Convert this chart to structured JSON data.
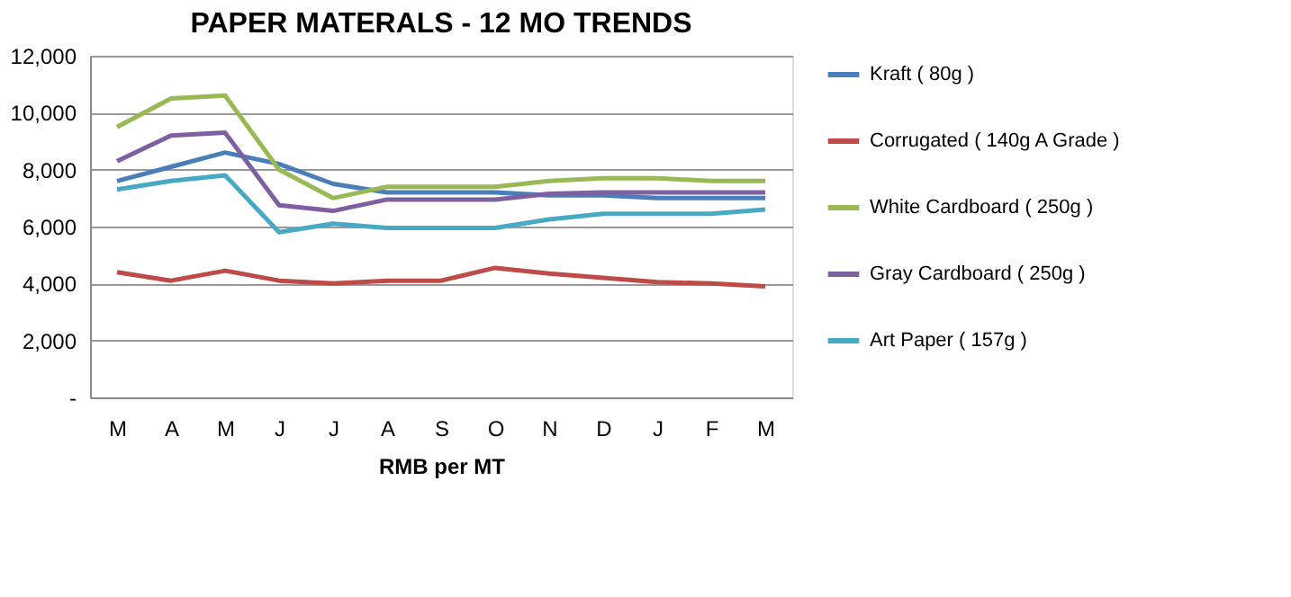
{
  "chart_data": {
    "type": "line",
    "title": "PAPER MATERALS - 12 MO TRENDS",
    "xlabel": "RMB  per  MT",
    "categories": [
      "M",
      "A",
      "M",
      "J",
      "J",
      "A",
      "S",
      "O",
      "N",
      "D",
      "J",
      "F",
      "M"
    ],
    "series": [
      {
        "name": "Kraft ( 80g )",
        "color": "#4a7ebb",
        "values": [
          7600,
          8100,
          8600,
          8200,
          7500,
          7200,
          7200,
          7200,
          7100,
          7100,
          7000,
          7000,
          7000
        ]
      },
      {
        "name": "Corrugated ( 140g  A Grade )",
        "color": "#be4b48",
        "values": [
          4400,
          4100,
          4450,
          4100,
          4000,
          4100,
          4100,
          4550,
          4350,
          4200,
          4050,
          4000,
          3900
        ]
      },
      {
        "name": "White  Cardboard ( 250g )",
        "color": "#98b954",
        "values": [
          9500,
          10500,
          10600,
          8000,
          7000,
          7400,
          7400,
          7400,
          7600,
          7700,
          7700,
          7600,
          7600
        ]
      },
      {
        "name": "Gray  Cardboard ( 250g )",
        "color": "#7d60a0",
        "values": [
          8300,
          9200,
          9300,
          6750,
          6550,
          6950,
          6950,
          6950,
          7150,
          7200,
          7200,
          7200,
          7200
        ]
      },
      {
        "name": "Art Paper ( 157g )",
        "color": "#46aac5",
        "values": [
          7300,
          7600,
          7800,
          5800,
          6100,
          5950,
          5950,
          5950,
          6250,
          6450,
          6450,
          6450,
          6600
        ]
      }
    ],
    "ylim": [
      0,
      12000
    ],
    "yticks": [
      {
        "value": 0,
        "label": "-"
      },
      {
        "value": 2000,
        "label": "2,000"
      },
      {
        "value": 4000,
        "label": "4,000"
      },
      {
        "value": 6000,
        "label": "6,000"
      },
      {
        "value": 8000,
        "label": "8,000"
      },
      {
        "value": 10000,
        "label": "10,000"
      },
      {
        "value": 12000,
        "label": "12,000"
      }
    ],
    "grid": "y",
    "legend": "right",
    "marker": "none",
    "line_style": "solid"
  }
}
